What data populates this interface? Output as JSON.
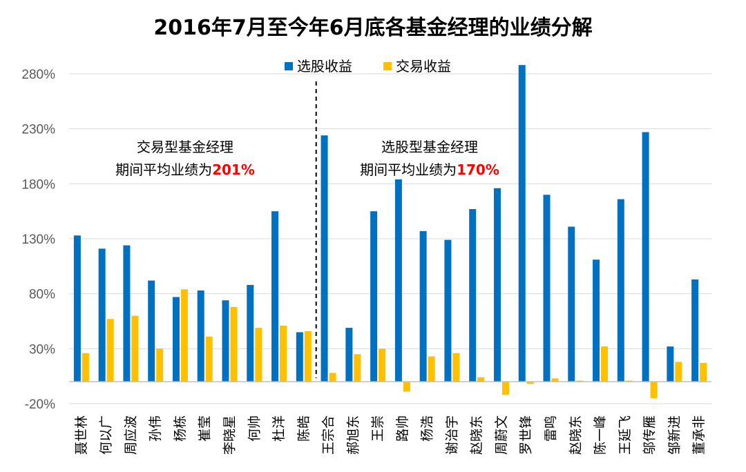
{
  "chart_data": {
    "type": "bar",
    "title": "2016年7月至今年6月底各基金经理的业绩分解",
    "xlabel": "",
    "ylabel": "",
    "ylim": [
      -20,
      280
    ],
    "yticks": [
      -20,
      30,
      80,
      130,
      180,
      230,
      280
    ],
    "ytick_labels": [
      "-20%",
      "30%",
      "80%",
      "130%",
      "180%",
      "230%",
      "280%"
    ],
    "grid": true,
    "legend_position": "top-center",
    "categories": [
      "聂世林",
      "何以广",
      "周应波",
      "孙伟",
      "杨栋",
      "崔莹",
      "李晓星",
      "何帅",
      "杜洋",
      "陈皓",
      "王宗合",
      "郝旭东",
      "王崇",
      "路帅",
      "杨浩",
      "谢治宇",
      "赵晓东",
      "周蔚文",
      "罗世锋",
      "雷鸣",
      "赵晓东",
      "陈一峰",
      "王延飞",
      "邬传雁",
      "邹新进",
      "董承非"
    ],
    "series": [
      {
        "name": "选股收益",
        "color": "#0070c0",
        "values": [
          133,
          121,
          124,
          92,
          77,
          83,
          74,
          88,
          155,
          45,
          224,
          49,
          155,
          184,
          137,
          129,
          157,
          176,
          288,
          170,
          141,
          111,
          166,
          227,
          32,
          93
        ]
      },
      {
        "name": "交易收益",
        "color": "#ffc000",
        "values": [
          26,
          57,
          60,
          30,
          84,
          41,
          68,
          49,
          51,
          46,
          8,
          25,
          30,
          -9,
          23,
          26,
          4,
          -12,
          -2,
          3,
          1,
          32,
          1,
          -15,
          18,
          17
        ]
      }
    ],
    "annotations": [
      {
        "line1": "交易型基金经理",
        "line2_prefix": "期间平均业绩为",
        "line2_value": "201%"
      },
      {
        "line1": "选股型基金经理",
        "line2_prefix": "期间平均业绩为",
        "line2_value": "170%"
      }
    ],
    "divider_after_category_index": 9
  }
}
